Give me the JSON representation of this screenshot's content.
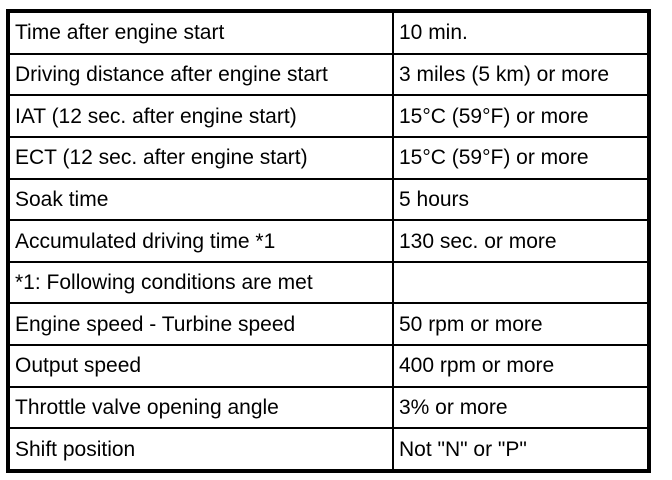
{
  "table": {
    "description": "Diagnostic readiness / drive pattern conditions table",
    "colors": {
      "border": "#000000",
      "background": "#ffffff",
      "text": "#000000"
    },
    "rows": [
      {
        "condition": "Time after engine start",
        "value": "10 min."
      },
      {
        "condition": "Driving distance after engine start",
        "value": "3 miles (5 km) or more"
      },
      {
        "condition": "IAT (12 sec. after engine start)",
        "value": "15°C (59°F) or more"
      },
      {
        "condition": "ECT (12 sec. after engine start)",
        "value": "15°C (59°F) or more"
      },
      {
        "condition": "Soak time",
        "value": "5 hours"
      },
      {
        "condition": "Accumulated driving time *1",
        "value": "130 sec. or more"
      },
      {
        "condition": "*1: Following conditions are met",
        "value": ""
      },
      {
        "condition": "Engine speed - Turbine speed",
        "value": "50 rpm or more"
      },
      {
        "condition": "Output speed",
        "value": "400 rpm or more"
      },
      {
        "condition": "Throttle valve opening angle",
        "value": "3% or more"
      },
      {
        "condition": "Shift position",
        "value": "Not \"N\" or \"P\""
      }
    ]
  }
}
